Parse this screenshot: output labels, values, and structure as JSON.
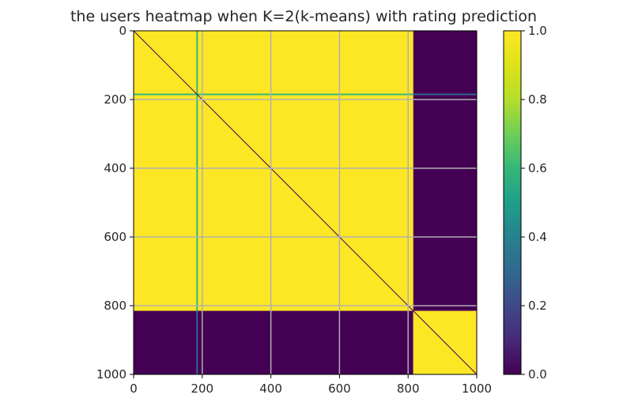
{
  "chart_data": {
    "type": "heatmap",
    "title": "the users heatmap when K=2(k-means) with rating prediction",
    "xlabel": "",
    "ylabel": "",
    "x_range": [
      0,
      1000
    ],
    "y_range": [
      0,
      1000
    ],
    "y_inverted": true,
    "x_ticks": [
      0,
      200,
      400,
      600,
      800,
      1000
    ],
    "y_ticks": [
      0,
      200,
      400,
      600,
      800,
      1000
    ],
    "grid": true,
    "colormap": "viridis",
    "colorbar": {
      "range": [
        0.0,
        1.0
      ],
      "ticks": [
        "0.0",
        "0.2",
        "0.4",
        "0.6",
        "0.8",
        "1.0"
      ]
    },
    "blocks": [
      {
        "x": [
          0,
          815
        ],
        "y": [
          0,
          815
        ],
        "value": 1.0
      },
      {
        "x": [
          815,
          1000
        ],
        "y": [
          0,
          815
        ],
        "value": 0.0
      },
      {
        "x": [
          0,
          815
        ],
        "y": [
          815,
          1000
        ],
        "value": 0.0
      },
      {
        "x": [
          815,
          1000
        ],
        "y": [
          815,
          1000
        ],
        "value": 1.0
      }
    ],
    "diagonal": {
      "from": 0,
      "to": 1000,
      "value": 0.0
    },
    "highlight_lines": [
      {
        "orientation": "horizontal",
        "at": 185,
        "value_in_cluster": 0.6,
        "value_outside": 0.3
      },
      {
        "orientation": "vertical",
        "at": 185,
        "value_in_cluster": 0.6,
        "value_outside": 0.3
      }
    ]
  }
}
